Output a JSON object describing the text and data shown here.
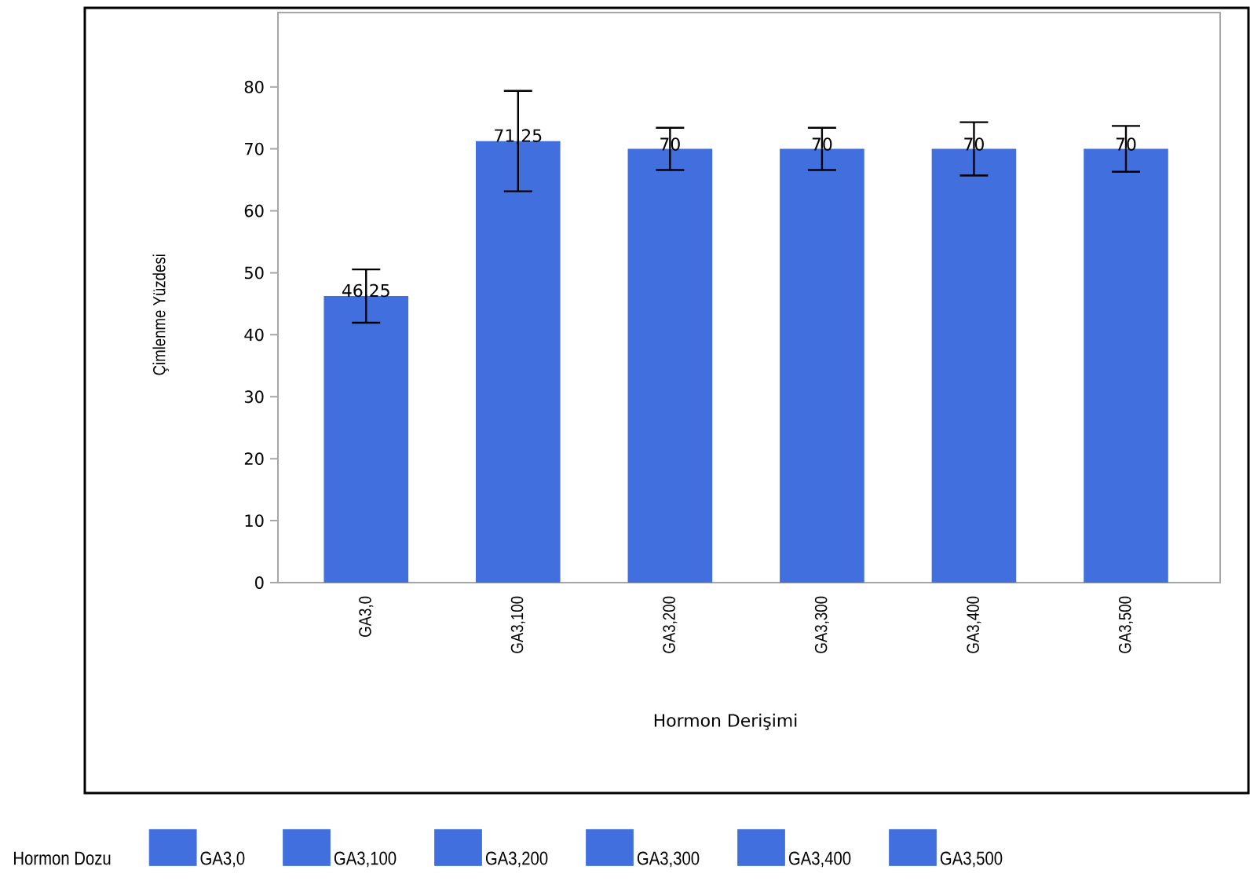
{
  "chart_data": {
    "type": "bar",
    "xlabel": "Hormon Derişimi",
    "ylabel": "Çimlenme Yüzdesi",
    "legend_title": "Hormon Dozu",
    "categories": [
      "GA3,0",
      "GA3,100",
      "GA3,200",
      "GA3,300",
      "GA3,400",
      "GA3,500"
    ],
    "stacked": true,
    "series": [
      {
        "name": "GA3,0",
        "color": "#4170de",
        "values": [
          46.25,
          null,
          null,
          null,
          null,
          null
        ],
        "errors": [
          4.3,
          null,
          null,
          null,
          null,
          null
        ],
        "value_labels": [
          "46,25",
          null,
          null,
          null,
          null,
          null
        ]
      },
      {
        "name": "GA3,100",
        "color": "#4170de",
        "values": [
          null,
          71.25,
          null,
          null,
          null,
          null
        ],
        "errors": [
          null,
          8.1,
          null,
          null,
          null,
          null
        ],
        "value_labels": [
          null,
          "71,25",
          null,
          null,
          null,
          null
        ]
      },
      {
        "name": "GA3,200",
        "color": "#4170de",
        "values": [
          null,
          null,
          70,
          null,
          null,
          null
        ],
        "errors": [
          null,
          null,
          3.4,
          null,
          null,
          null
        ],
        "value_labels": [
          null,
          null,
          "70",
          null,
          null,
          null
        ]
      },
      {
        "name": "GA3,300",
        "color": "#4170de",
        "values": [
          null,
          null,
          null,
          70,
          null,
          null
        ],
        "errors": [
          null,
          null,
          null,
          3.4,
          null,
          null
        ],
        "value_labels": [
          null,
          null,
          null,
          "70",
          null,
          null
        ]
      },
      {
        "name": "GA3,400",
        "color": "#4170de",
        "values": [
          null,
          null,
          null,
          null,
          70,
          null
        ],
        "errors": [
          null,
          null,
          null,
          null,
          4.3,
          null
        ],
        "value_labels": [
          null,
          null,
          null,
          null,
          "70",
          null
        ]
      },
      {
        "name": "GA3,500",
        "color": "#4170de",
        "values": [
          null,
          null,
          null,
          null,
          null,
          70
        ],
        "errors": [
          null,
          null,
          null,
          null,
          null,
          3.7
        ],
        "value_labels": [
          null,
          null,
          null,
          null,
          null,
          "70"
        ]
      }
    ],
    "ylim": [
      0,
      92
    ],
    "yticks": [
      0,
      10,
      20,
      30,
      40,
      50,
      60,
      70,
      80
    ],
    "grid": false,
    "legend": "bottom"
  }
}
